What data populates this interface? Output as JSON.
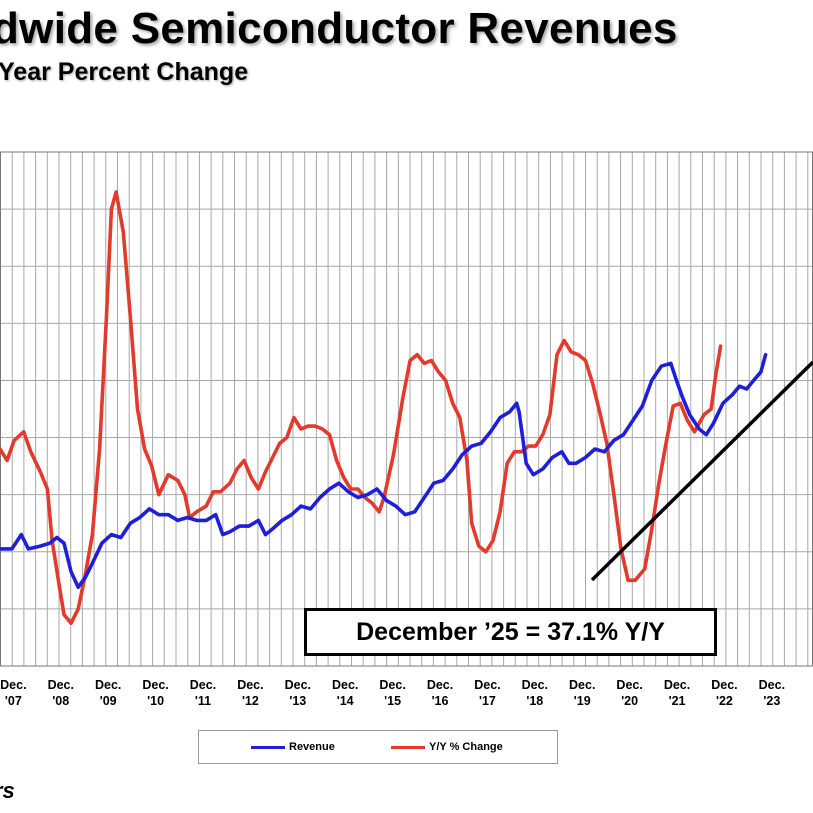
{
  "title": "dwide Semiconductor Revenues",
  "subtitle": "Year Percent Change",
  "annotation": "December ’25 = 37.1% Y/Y",
  "source_fragment": "rs",
  "colors": {
    "revenue": "#1f1fd6",
    "yoy": "#e23a2c",
    "trend": "#000000",
    "grid": "#a8a8a8"
  },
  "chart_data": {
    "type": "line",
    "title": "Worldwide Semiconductor Revenues",
    "subtitle": "Year to Year Percent Change",
    "xlabel": "",
    "ylabel": "",
    "x_range": [
      2006.95,
      2024.1
    ],
    "y_range": [
      0,
      9
    ],
    "grid": true,
    "legend_position": "bottom",
    "x_ticks": [
      {
        "month": "Dec.",
        "year": "'07",
        "x": 2007.0
      },
      {
        "month": "Dec.",
        "year": "'08",
        "x": 2008.0
      },
      {
        "month": "Dec.",
        "year": "'09",
        "x": 2009.0
      },
      {
        "month": "Dec.",
        "year": "'10",
        "x": 2010.0
      },
      {
        "month": "Dec.",
        "year": "'11",
        "x": 2011.0
      },
      {
        "month": "Dec.",
        "year": "'12",
        "x": 2012.0
      },
      {
        "month": "Dec.",
        "year": "'13",
        "x": 2013.0
      },
      {
        "month": "Dec.",
        "year": "'14",
        "x": 2014.0
      },
      {
        "month": "Dec.",
        "year": "'15",
        "x": 2015.0
      },
      {
        "month": "Dec.",
        "year": "'16",
        "x": 2016.0
      },
      {
        "month": "Dec.",
        "year": "'17",
        "x": 2017.0
      },
      {
        "month": "Dec.",
        "year": "'18",
        "x": 2018.0
      },
      {
        "month": "Dec.",
        "year": "'19",
        "x": 2019.0
      },
      {
        "month": "Dec.",
        "year": "'20",
        "x": 2020.0
      },
      {
        "month": "Dec.",
        "year": "'21",
        "x": 2021.0
      },
      {
        "month": "Dec.",
        "year": "'22",
        "x": 2022.0
      },
      {
        "month": "Dec.",
        "year": "'23",
        "x": 2023.0
      }
    ],
    "series": [
      {
        "name": "Revenue",
        "points": [
          [
            2006.95,
            2.05
          ],
          [
            2007.2,
            2.05
          ],
          [
            2007.4,
            2.3
          ],
          [
            2007.55,
            2.05
          ],
          [
            2007.8,
            2.1
          ],
          [
            2008.0,
            2.15
          ],
          [
            2008.15,
            2.25
          ],
          [
            2008.3,
            2.15
          ],
          [
            2008.45,
            1.65
          ],
          [
            2008.6,
            1.38
          ],
          [
            2008.75,
            1.55
          ],
          [
            2008.9,
            1.8
          ],
          [
            2009.1,
            2.15
          ],
          [
            2009.3,
            2.3
          ],
          [
            2009.5,
            2.25
          ],
          [
            2009.7,
            2.5
          ],
          [
            2009.9,
            2.6
          ],
          [
            2010.1,
            2.75
          ],
          [
            2010.3,
            2.65
          ],
          [
            2010.5,
            2.65
          ],
          [
            2010.7,
            2.55
          ],
          [
            2010.9,
            2.6
          ],
          [
            2011.1,
            2.55
          ],
          [
            2011.3,
            2.55
          ],
          [
            2011.5,
            2.65
          ],
          [
            2011.65,
            2.3
          ],
          [
            2011.8,
            2.35
          ],
          [
            2012.0,
            2.45
          ],
          [
            2012.2,
            2.45
          ],
          [
            2012.4,
            2.55
          ],
          [
            2012.55,
            2.3
          ],
          [
            2012.7,
            2.4
          ],
          [
            2012.9,
            2.55
          ],
          [
            2013.1,
            2.65
          ],
          [
            2013.3,
            2.8
          ],
          [
            2013.5,
            2.75
          ],
          [
            2013.7,
            2.95
          ],
          [
            2013.9,
            3.1
          ],
          [
            2014.1,
            3.2
          ],
          [
            2014.3,
            3.05
          ],
          [
            2014.5,
            2.95
          ],
          [
            2014.7,
            3.0
          ],
          [
            2014.9,
            3.1
          ],
          [
            2015.1,
            2.9
          ],
          [
            2015.3,
            2.8
          ],
          [
            2015.5,
            2.65
          ],
          [
            2015.7,
            2.7
          ],
          [
            2015.9,
            2.95
          ],
          [
            2016.1,
            3.2
          ],
          [
            2016.3,
            3.25
          ],
          [
            2016.5,
            3.45
          ],
          [
            2016.7,
            3.7
          ],
          [
            2016.9,
            3.85
          ],
          [
            2017.1,
            3.9
          ],
          [
            2017.3,
            4.1
          ],
          [
            2017.5,
            4.35
          ],
          [
            2017.7,
            4.45
          ],
          [
            2017.85,
            4.6
          ],
          [
            2017.9,
            4.45
          ],
          [
            2018.05,
            3.55
          ],
          [
            2018.2,
            3.35
          ],
          [
            2018.4,
            3.45
          ],
          [
            2018.6,
            3.65
          ],
          [
            2018.8,
            3.75
          ],
          [
            2018.95,
            3.55
          ],
          [
            2019.1,
            3.55
          ],
          [
            2019.3,
            3.65
          ],
          [
            2019.5,
            3.8
          ],
          [
            2019.7,
            3.75
          ],
          [
            2019.9,
            3.95
          ],
          [
            2020.1,
            4.05
          ],
          [
            2020.3,
            4.3
          ],
          [
            2020.5,
            4.55
          ],
          [
            2020.7,
            5.0
          ],
          [
            2020.9,
            5.25
          ],
          [
            2021.1,
            5.3
          ],
          [
            2021.2,
            5.05
          ],
          [
            2021.35,
            4.7
          ],
          [
            2021.5,
            4.4
          ],
          [
            2021.7,
            4.15
          ],
          [
            2021.85,
            4.05
          ],
          [
            2022.0,
            4.25
          ],
          [
            2022.2,
            4.6
          ],
          [
            2022.4,
            4.75
          ],
          [
            2022.55,
            4.9
          ],
          [
            2022.7,
            4.85
          ],
          [
            2022.85,
            5.0
          ],
          [
            2023.0,
            5.15
          ],
          [
            2023.1,
            5.45
          ]
        ]
      },
      {
        "name": "Y/Y % Change",
        "points": [
          [
            2006.95,
            3.8
          ],
          [
            2007.1,
            3.6
          ],
          [
            2007.25,
            3.95
          ],
          [
            2007.45,
            4.1
          ],
          [
            2007.6,
            3.75
          ],
          [
            2007.8,
            3.4
          ],
          [
            2007.95,
            3.1
          ],
          [
            2008.05,
            2.2
          ],
          [
            2008.2,
            1.4
          ],
          [
            2008.3,
            0.9
          ],
          [
            2008.45,
            0.75
          ],
          [
            2008.6,
            1.0
          ],
          [
            2008.75,
            1.6
          ],
          [
            2008.9,
            2.3
          ],
          [
            2009.05,
            3.8
          ],
          [
            2009.2,
            6.2
          ],
          [
            2009.3,
            8.0
          ],
          [
            2009.4,
            8.3
          ],
          [
            2009.55,
            7.6
          ],
          [
            2009.7,
            6.1
          ],
          [
            2009.85,
            4.5
          ],
          [
            2010.0,
            3.8
          ],
          [
            2010.15,
            3.5
          ],
          [
            2010.3,
            3.0
          ],
          [
            2010.5,
            3.35
          ],
          [
            2010.7,
            3.25
          ],
          [
            2010.85,
            3.0
          ],
          [
            2010.95,
            2.6
          ],
          [
            2011.1,
            2.7
          ],
          [
            2011.3,
            2.8
          ],
          [
            2011.45,
            3.05
          ],
          [
            2011.6,
            3.05
          ],
          [
            2011.8,
            3.2
          ],
          [
            2011.95,
            3.45
          ],
          [
            2012.1,
            3.6
          ],
          [
            2012.25,
            3.3
          ],
          [
            2012.4,
            3.1
          ],
          [
            2012.55,
            3.4
          ],
          [
            2012.7,
            3.65
          ],
          [
            2012.85,
            3.9
          ],
          [
            2013.0,
            4.0
          ],
          [
            2013.15,
            4.35
          ],
          [
            2013.3,
            4.15
          ],
          [
            2013.45,
            4.2
          ],
          [
            2013.6,
            4.2
          ],
          [
            2013.75,
            4.15
          ],
          [
            2013.9,
            4.05
          ],
          [
            2014.05,
            3.6
          ],
          [
            2014.2,
            3.3
          ],
          [
            2014.35,
            3.1
          ],
          [
            2014.5,
            3.1
          ],
          [
            2014.65,
            2.95
          ],
          [
            2014.8,
            2.85
          ],
          [
            2014.95,
            2.7
          ],
          [
            2015.05,
            2.95
          ],
          [
            2015.25,
            3.7
          ],
          [
            2015.45,
            4.7
          ],
          [
            2015.6,
            5.35
          ],
          [
            2015.75,
            5.45
          ],
          [
            2015.9,
            5.3
          ],
          [
            2016.05,
            5.35
          ],
          [
            2016.2,
            5.15
          ],
          [
            2016.35,
            5.0
          ],
          [
            2016.5,
            4.6
          ],
          [
            2016.65,
            4.35
          ],
          [
            2016.8,
            3.6
          ],
          [
            2016.9,
            2.5
          ],
          [
            2017.05,
            2.1
          ],
          [
            2017.2,
            2.0
          ],
          [
            2017.35,
            2.2
          ],
          [
            2017.5,
            2.7
          ],
          [
            2017.65,
            3.55
          ],
          [
            2017.8,
            3.75
          ],
          [
            2017.95,
            3.75
          ],
          [
            2018.1,
            3.85
          ],
          [
            2018.25,
            3.85
          ],
          [
            2018.4,
            4.05
          ],
          [
            2018.55,
            4.4
          ],
          [
            2018.7,
            5.45
          ],
          [
            2018.85,
            5.7
          ],
          [
            2019.0,
            5.5
          ],
          [
            2019.15,
            5.45
          ],
          [
            2019.3,
            5.35
          ],
          [
            2019.45,
            4.95
          ],
          [
            2019.6,
            4.45
          ],
          [
            2019.75,
            3.9
          ],
          [
            2019.9,
            3.0
          ],
          [
            2020.05,
            2.05
          ],
          [
            2020.2,
            1.5
          ],
          [
            2020.35,
            1.5
          ],
          [
            2020.55,
            1.7
          ],
          [
            2020.7,
            2.4
          ],
          [
            2020.85,
            3.2
          ],
          [
            2021.0,
            3.9
          ],
          [
            2021.15,
            4.55
          ],
          [
            2021.3,
            4.6
          ],
          [
            2021.45,
            4.3
          ],
          [
            2021.6,
            4.1
          ],
          [
            2021.8,
            4.4
          ],
          [
            2021.95,
            4.5
          ],
          [
            2022.05,
            5.1
          ],
          [
            2022.15,
            5.6
          ]
        ]
      }
    ]
  },
  "legend": {
    "revenue_label": "Revenue",
    "yoy_label": "Y/Y % Change"
  }
}
